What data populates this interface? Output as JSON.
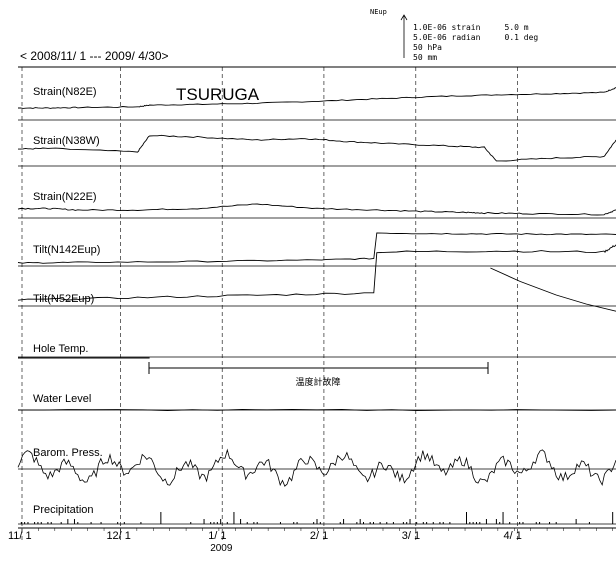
{
  "chart_data": {
    "type": "line",
    "title": "TSURUGA",
    "date_range": "< 2008/11/ 1 --- 2009/ 4/30>",
    "scale_legend": {
      "arrow_label": "NEup",
      "lines": [
        "1.0E-06 strain     5.0 m",
        "5.0E-06 radian     0.1 deg",
        "50 hPa",
        "50 mm"
      ]
    },
    "x_ticks": [
      "11/ 1",
      "12/ 1",
      "1/ 1",
      "2/ 1",
      "3/ 1",
      "4/ 1"
    ],
    "year_label": "2009",
    "annotation": "温度計故障",
    "series": [
      {
        "name": "Strain(N82E)",
        "points": [
          [
            0,
            0.0
          ],
          [
            0.05,
            0.0
          ],
          [
            0.1,
            0.02
          ],
          [
            0.2,
            0.05
          ],
          [
            0.22,
            0.12
          ],
          [
            0.3,
            0.15
          ],
          [
            0.4,
            0.2
          ],
          [
            0.5,
            0.28
          ],
          [
            0.6,
            0.38
          ],
          [
            0.7,
            0.48
          ],
          [
            0.8,
            0.55
          ],
          [
            0.9,
            0.6
          ],
          [
            0.98,
            0.65
          ],
          [
            1.0,
            0.85
          ]
        ],
        "steps": [
          0.22,
          0.98
        ]
      },
      {
        "name": "Strain(N38W)",
        "points": [
          [
            0,
            0.1
          ],
          [
            0.05,
            0.12
          ],
          [
            0.2,
            0.0
          ],
          [
            0.22,
            0.55
          ],
          [
            0.3,
            0.5
          ],
          [
            0.4,
            0.4
          ],
          [
            0.48,
            0.45
          ],
          [
            0.55,
            0.35
          ],
          [
            0.62,
            0.28
          ],
          [
            0.72,
            0.2
          ],
          [
            0.78,
            0.15
          ],
          [
            0.8,
            -0.3
          ],
          [
            0.9,
            -0.2
          ],
          [
            0.98,
            -0.15
          ],
          [
            1.0,
            0.4
          ]
        ],
        "steps": [
          0.22,
          0.8,
          0.98
        ]
      },
      {
        "name": "Strain(N22E)",
        "points": [
          [
            0,
            0.05
          ],
          [
            0.05,
            0.05
          ],
          [
            0.1,
            0.0
          ],
          [
            0.2,
            0.0
          ],
          [
            0.3,
            0.05
          ],
          [
            0.4,
            0.2
          ],
          [
            0.5,
            0.05
          ],
          [
            0.6,
            0.0
          ],
          [
            0.68,
            -0.05
          ],
          [
            0.75,
            -0.08
          ],
          [
            0.78,
            -0.1
          ],
          [
            0.85,
            -0.12
          ],
          [
            0.98,
            -0.15
          ],
          [
            1.0,
            0.0
          ]
        ],
        "steps": [
          0.98
        ]
      },
      {
        "name": "Tilt(N142Eup)",
        "points": [
          [
            0,
            0.0
          ],
          [
            0.1,
            0.02
          ],
          [
            0.3,
            0.05
          ],
          [
            0.5,
            0.1
          ],
          [
            0.595,
            0.15
          ],
          [
            0.6,
            1.0
          ],
          [
            0.7,
            0.98
          ],
          [
            0.8,
            0.97
          ],
          [
            0.9,
            0.96
          ],
          [
            1.0,
            0.95
          ]
        ],
        "steps": [
          0.6
        ]
      },
      {
        "name": "Tilt(N52Eup)",
        "points": [
          [
            0,
            0.0
          ],
          [
            0.2,
            0.05
          ],
          [
            0.4,
            0.1
          ],
          [
            0.595,
            0.15
          ],
          [
            0.6,
            1.0
          ],
          [
            0.8,
            1.02
          ],
          [
            0.98,
            1.0
          ],
          [
            1.0,
            1.15
          ]
        ],
        "steps": [
          0.6,
          0.98
        ]
      },
      {
        "name": "Hole Temp.",
        "segments": [
          [
            [
              0,
              0.0
            ],
            [
              0.22,
              0.0
            ]
          ],
          [
            [
              0.79,
              1.0
            ],
            [
              0.84,
              0.85
            ],
            [
              0.9,
              0.7
            ],
            [
              0.95,
              0.6
            ],
            [
              1.0,
              0.52
            ]
          ]
        ]
      },
      {
        "name": "Water Level",
        "points": [
          [
            0,
            0.0
          ],
          [
            0.5,
            0.0
          ],
          [
            1.0,
            0.0
          ]
        ]
      },
      {
        "name": "Barom. Press.",
        "kind": "pressure"
      },
      {
        "name": "Precipitation",
        "kind": "precip"
      }
    ]
  }
}
